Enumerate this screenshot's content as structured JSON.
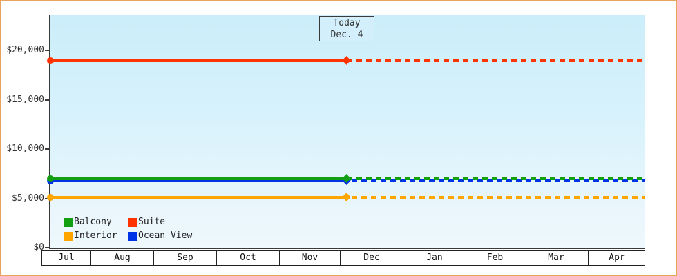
{
  "chart_data": {
    "type": "line",
    "title": "",
    "today": {
      "label": "Today",
      "date": "Dec. 4"
    },
    "x_categories": [
      "Jul",
      "Aug",
      "Sep",
      "Oct",
      "Nov",
      "Dec",
      "Jan",
      "Feb",
      "Mar",
      "Apr"
    ],
    "y_axis": {
      "ticks": [
        {
          "value": 0,
          "label": "$0"
        },
        {
          "value": 5000,
          "label": "$5,000"
        },
        {
          "value": 10000,
          "label": "$10,000"
        },
        {
          "value": 15000,
          "label": "$15,000"
        },
        {
          "value": 20000,
          "label": "$20,000"
        }
      ],
      "ylim": [
        0,
        23600
      ]
    },
    "series": [
      {
        "name": "Suite",
        "color": "#ff3300",
        "value": 19000
      },
      {
        "name": "Ocean View",
        "color": "#0033e6",
        "value": 6800
      },
      {
        "name": "Balcony",
        "color": "#12a012",
        "value": 7000
      },
      {
        "name": "Interior",
        "color": "#ffa500",
        "value": 5100
      }
    ],
    "legend": [
      {
        "label": "Balcony",
        "color": "#12a012"
      },
      {
        "label": "Suite",
        "color": "#ff3300"
      },
      {
        "label": "Interior",
        "color": "#ffa500"
      },
      {
        "label": "Ocean View",
        "color": "#0033e6"
      }
    ],
    "layout": {
      "grid": false,
      "legend_position": "bottom-left",
      "solid_before_today": true,
      "dotted_after_today": true,
      "today_x_fraction": 0.499
    },
    "colors": {
      "frame_border": "#e9a45b",
      "axis": "#3a3a3a",
      "plot_bg_top": "#cbeefa",
      "plot_bg_bottom": "#eef8fd",
      "today_box_bg": "#d2effb"
    }
  }
}
